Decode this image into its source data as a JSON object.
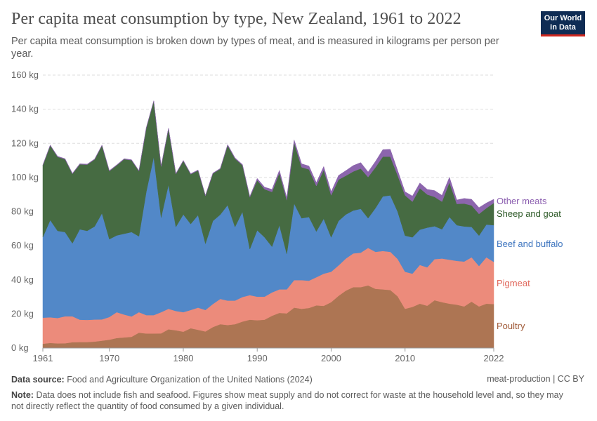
{
  "header": {
    "title": "Per capita meat consumption by type, New Zealand, 1961 to 2022",
    "subtitle": "Per capita meat consumption is broken down by types of meat, and is measured in kilograms per person per year.",
    "logo": "Our World in Data"
  },
  "footer": {
    "source_label": "Data source:",
    "source": "Food and Agriculture Organization of the United Nations (2024)",
    "license": "meat-production | CC BY",
    "note_label": "Note:",
    "note": "Data does not include fish and seafood. Figures show meat supply and do not correct for waste at the household level and, so they may not directly reflect the quantity of food consumed by a given individual."
  },
  "chart_data": {
    "type": "area",
    "stacked": true,
    "title": "Per capita meat consumption by type, New Zealand, 1961 to 2022",
    "unit": "kg",
    "ylim": [
      0,
      160
    ],
    "yticks": [
      0,
      20,
      40,
      60,
      80,
      100,
      120,
      140,
      160
    ],
    "ytick_labels": [
      "0 kg",
      "20 kg",
      "40 kg",
      "60 kg",
      "80 kg",
      "100 kg",
      "120 kg",
      "140 kg",
      "160 kg"
    ],
    "xlim": [
      1961,
      2022
    ],
    "xticks": [
      1961,
      1970,
      1980,
      1990,
      2000,
      2010,
      2022
    ],
    "xtick_labels": [
      "1961",
      "1970",
      "1980",
      "1990",
      "2000",
      "2010",
      "2022"
    ],
    "grid": "horizontal dashed",
    "legend": "right, inline labels",
    "x": [
      1961,
      1962,
      1963,
      1964,
      1965,
      1966,
      1967,
      1968,
      1969,
      1970,
      1971,
      1972,
      1973,
      1974,
      1975,
      1976,
      1977,
      1978,
      1979,
      1980,
      1981,
      1982,
      1983,
      1984,
      1985,
      1986,
      1987,
      1988,
      1989,
      1990,
      1991,
      1992,
      1993,
      1994,
      1995,
      1996,
      1997,
      1998,
      1999,
      2000,
      2001,
      2002,
      2003,
      2004,
      2005,
      2006,
      2007,
      2008,
      2009,
      2010,
      2011,
      2012,
      2013,
      2014,
      2015,
      2016,
      2017,
      2018,
      2019,
      2020,
      2021,
      2022
    ],
    "series": [
      {
        "name": "Poultry",
        "color": "#ad7553",
        "label_color": "#a05a38",
        "values": [
          2.5,
          3,
          2.7,
          2.8,
          3.4,
          3.5,
          3.5,
          3.8,
          4.3,
          4.9,
          5.9,
          6.2,
          6.6,
          9,
          8.5,
          8.5,
          8.6,
          11,
          10.4,
          9.6,
          11.6,
          10.7,
          9.7,
          12.3,
          14,
          13.5,
          14,
          15.5,
          16.6,
          16.3,
          16.6,
          18.9,
          20.6,
          20.3,
          23.7,
          23,
          23.5,
          25,
          24.7,
          26.9,
          30.6,
          33.7,
          35.7,
          35.7,
          36.7,
          34.7,
          34.4,
          34,
          30.3,
          23,
          24.1,
          26,
          24.8,
          28,
          26.9,
          26,
          25.4,
          24.4,
          27.2,
          24.4,
          26,
          25.8
        ]
      },
      {
        "name": "Pigmeat",
        "color": "#ec8b7b",
        "label_color": "#e0665a",
        "values": [
          15.3,
          15,
          14.9,
          15.8,
          15.2,
          13.1,
          13,
          12.9,
          12.5,
          13.3,
          15.1,
          13.4,
          11.9,
          12,
          10.8,
          10.8,
          12.4,
          12,
          11.3,
          11.4,
          10.7,
          13,
          12.6,
          13.5,
          14.8,
          14.3,
          13.8,
          14.4,
          14.4,
          13.8,
          13.5,
          13.7,
          13.8,
          14.1,
          16.1,
          16.8,
          16,
          16.5,
          18.9,
          17.8,
          17.8,
          18.8,
          19.8,
          20.2,
          22,
          21.7,
          22.5,
          22.4,
          21.9,
          21.7,
          19.5,
          22.7,
          22.5,
          24.1,
          25.6,
          25.8,
          25.7,
          26.3,
          26,
          23.7,
          27.2,
          24.7
        ]
      },
      {
        "name": "Beef and buffalo",
        "color": "#5288c8",
        "label_color": "#3e75bf",
        "values": [
          47.2,
          57,
          51.1,
          49.4,
          42.8,
          53,
          52.2,
          54.6,
          62.2,
          45.6,
          45,
          47.4,
          49.5,
          44.5,
          72.4,
          92.7,
          55.5,
          72.7,
          49.3,
          57.3,
          50.4,
          54.2,
          38.9,
          48.7,
          49.4,
          56,
          43.2,
          50,
          27,
          38.9,
          34.8,
          26.8,
          37.6,
          20.8,
          44.9,
          36.3,
          37.3,
          26.8,
          32.2,
          20.2,
          26.1,
          25.8,
          25.1,
          25.7,
          17.4,
          25.6,
          32,
          33.1,
          27.7,
          21.2,
          21.3,
          20.7,
          23.3,
          19.3,
          17.1,
          25,
          20.9,
          20.6,
          17.8,
          17.8,
          19.2,
          21.5
        ]
      },
      {
        "name": "Sheep and goat",
        "color": "#466b42",
        "label_color": "#2d5a27",
        "values": [
          42.1,
          43.7,
          43.4,
          42.7,
          40.7,
          38.1,
          38.8,
          39.2,
          39.7,
          39.9,
          41.1,
          43.7,
          42.1,
          38.2,
          37.3,
          32.7,
          29.9,
          32.9,
          31,
          31.4,
          29.2,
          26.2,
          28,
          27.8,
          26.8,
          35,
          40,
          27.2,
          30.4,
          29.4,
          28.2,
          32.1,
          30.7,
          31.5,
          35.8,
          29.9,
          27.9,
          26.7,
          28.6,
          24.7,
          24.2,
          22.7,
          22.9,
          23.6,
          24.1,
          23.9,
          23.3,
          22.7,
          21.3,
          23.6,
          20.9,
          24.3,
          19.4,
          17.2,
          16.2,
          20.3,
          12.5,
          13.4,
          12.6,
          12.7,
          9.6,
          13
        ]
      },
      {
        "name": "Other meats",
        "color": "#8c65ad",
        "label_color": "#8c5fb0",
        "values": [
          0.3,
          0.3,
          0.3,
          0.3,
          0.3,
          0.3,
          0.3,
          0.3,
          0.3,
          0.3,
          0.3,
          0.3,
          0.3,
          0.3,
          0.3,
          0.3,
          0.3,
          0.3,
          0.3,
          0.3,
          0.3,
          0.3,
          0.3,
          0.3,
          0.3,
          0.5,
          0.5,
          0.5,
          0.5,
          1,
          1.2,
          1.5,
          1.5,
          1.5,
          1.5,
          2,
          2,
          2,
          2,
          2,
          2.5,
          3,
          3.5,
          3.5,
          3,
          3.5,
          4.1,
          4.3,
          2.8,
          2.1,
          3.3,
          3.1,
          3,
          3.7,
          3.7,
          3,
          2.3,
          3,
          3.6,
          3.7,
          3,
          2.2
        ]
      }
    ]
  }
}
